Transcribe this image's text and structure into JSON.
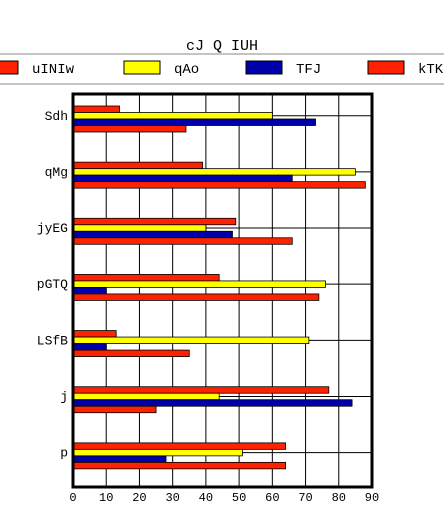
{
  "chart_data": {
    "type": "bar",
    "orientation": "horizontal",
    "title": "cJ Q IUH",
    "xlabel": "",
    "ylabel": "",
    "xlim": [
      0,
      90
    ],
    "xticks": [
      0,
      10,
      20,
      30,
      40,
      50,
      60,
      70,
      80,
      90
    ],
    "grid": true,
    "legend_position": "top",
    "categories": [
      "Sdh",
      "qMg",
      "jyEG",
      "pGTQ",
      "LSfB",
      "j",
      "p"
    ],
    "series": [
      {
        "name": "uINIw",
        "color": "#ff2200",
        "values": [
          14,
          39,
          49,
          44,
          13,
          77,
          64
        ]
      },
      {
        "name": "qAo",
        "color": "#ffff00",
        "values": [
          60,
          85,
          40,
          76,
          71,
          44,
          51
        ]
      },
      {
        "name": "TFJ",
        "color": "#0000aa",
        "values": [
          73,
          66,
          48,
          10,
          10,
          84,
          28
        ]
      },
      {
        "name": "kTK",
        "color": "#ff2200",
        "values": [
          34,
          88,
          66,
          74,
          35,
          25,
          64
        ]
      }
    ]
  }
}
